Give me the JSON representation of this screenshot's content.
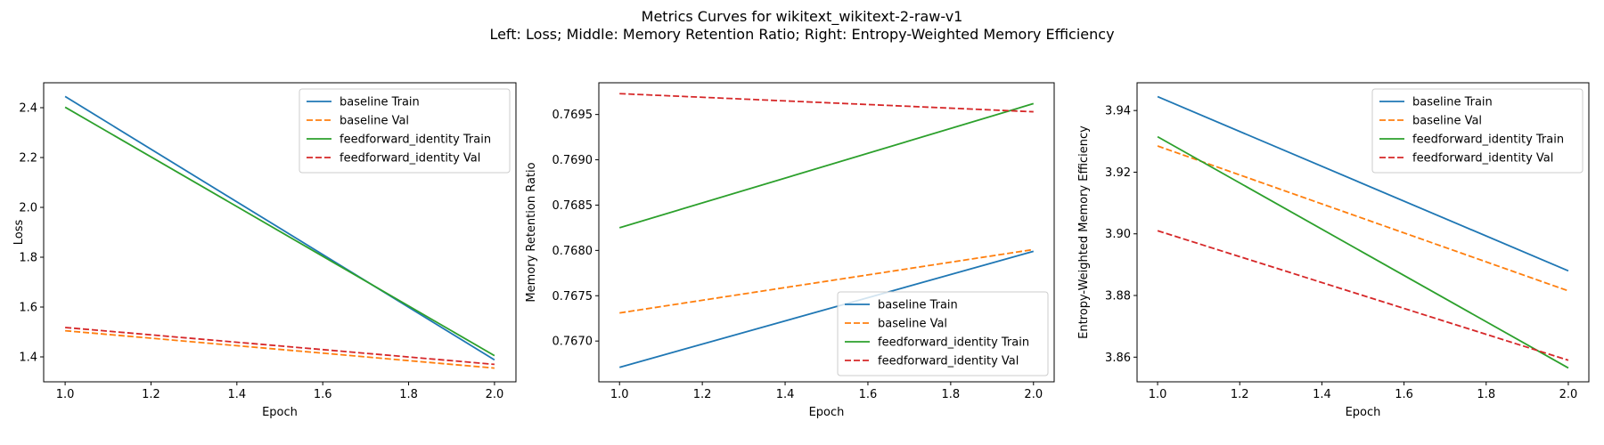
{
  "figure": {
    "title_line1": "Metrics Curves for wikitext_wikitext-2-raw-v1",
    "title_line2": "Left: Loss; Middle: Memory Retention Ratio; Right: Entropy-Weighted Memory Efficiency"
  },
  "colors": {
    "baseline Train": "#1f77b4",
    "baseline Val": "#ff7f0e",
    "feedforward_identity Train": "#2ca02c",
    "feedforward_identity Val": "#d62728"
  },
  "chart_data": [
    {
      "type": "line",
      "title": "",
      "xlabel": "Epoch",
      "ylabel": "Loss",
      "x": [
        1.0,
        2.0
      ],
      "xlim": [
        0.95,
        2.05
      ],
      "ylim": [
        1.3,
        2.5
      ],
      "xticks": [
        1.0,
        1.2,
        1.4,
        1.6,
        1.8,
        2.0
      ],
      "xtick_labels": [
        "1.0",
        "1.2",
        "1.4",
        "1.6",
        "1.8",
        "2.0"
      ],
      "yticks": [
        1.4,
        1.6,
        1.8,
        2.0,
        2.2,
        2.4
      ],
      "ytick_labels": [
        "1.4",
        "1.6",
        "1.8",
        "2.0",
        "2.2",
        "2.4"
      ],
      "grid": false,
      "legend": "top-right",
      "series": [
        {
          "name": "baseline Train",
          "values": [
            2.445,
            1.388
          ],
          "style": "solid"
        },
        {
          "name": "baseline Val",
          "values": [
            1.505,
            1.355
          ],
          "style": "dashed"
        },
        {
          "name": "feedforward_identity Train",
          "values": [
            2.402,
            1.405
          ],
          "style": "solid"
        },
        {
          "name": "feedforward_identity Val",
          "values": [
            1.518,
            1.37
          ],
          "style": "dashed"
        }
      ]
    },
    {
      "type": "line",
      "title": "",
      "xlabel": "Epoch",
      "ylabel": "Memory Retention Ratio",
      "x": [
        1.0,
        2.0
      ],
      "xlim": [
        0.95,
        2.05
      ],
      "ylim": [
        0.76655,
        0.76985
      ],
      "xticks": [
        1.0,
        1.2,
        1.4,
        1.6,
        1.8,
        2.0
      ],
      "xtick_labels": [
        "1.0",
        "1.2",
        "1.4",
        "1.6",
        "1.8",
        "2.0"
      ],
      "yticks": [
        0.767,
        0.7675,
        0.768,
        0.7685,
        0.769,
        0.7695
      ],
      "ytick_labels": [
        "0.7670",
        "0.7675",
        "0.7680",
        "0.7685",
        "0.7690",
        "0.7695"
      ],
      "grid": false,
      "legend": "bottom-right",
      "series": [
        {
          "name": "baseline Train",
          "values": [
            0.76671,
            0.76799
          ],
          "style": "solid"
        },
        {
          "name": "baseline Val",
          "values": [
            0.76731,
            0.76801
          ],
          "style": "dashed"
        },
        {
          "name": "feedforward_identity Train",
          "values": [
            0.76825,
            0.76962
          ],
          "style": "solid"
        },
        {
          "name": "feedforward_identity Val",
          "values": [
            0.76973,
            0.76953
          ],
          "style": "dashed"
        }
      ]
    },
    {
      "type": "line",
      "title": "",
      "xlabel": "Epoch",
      "ylabel": "Entropy-Weighted Memory Efficiency",
      "x": [
        1.0,
        2.0
      ],
      "xlim": [
        0.95,
        2.05
      ],
      "ylim": [
        3.852,
        3.949
      ],
      "xticks": [
        1.0,
        1.2,
        1.4,
        1.6,
        1.8,
        2.0
      ],
      "xtick_labels": [
        "1.0",
        "1.2",
        "1.4",
        "1.6",
        "1.8",
        "2.0"
      ],
      "yticks": [
        3.86,
        3.88,
        3.9,
        3.92,
        3.94
      ],
      "ytick_labels": [
        "3.86",
        "3.88",
        "3.90",
        "3.92",
        "3.94"
      ],
      "grid": false,
      "legend": "top-right",
      "series": [
        {
          "name": "baseline Train",
          "values": [
            3.9445,
            3.888
          ],
          "style": "solid"
        },
        {
          "name": "baseline Val",
          "values": [
            3.9285,
            3.8815
          ],
          "style": "dashed"
        },
        {
          "name": "feedforward_identity Train",
          "values": [
            3.9315,
            3.8565
          ],
          "style": "solid"
        },
        {
          "name": "feedforward_identity Val",
          "values": [
            3.901,
            3.859
          ],
          "style": "dashed"
        }
      ]
    }
  ]
}
